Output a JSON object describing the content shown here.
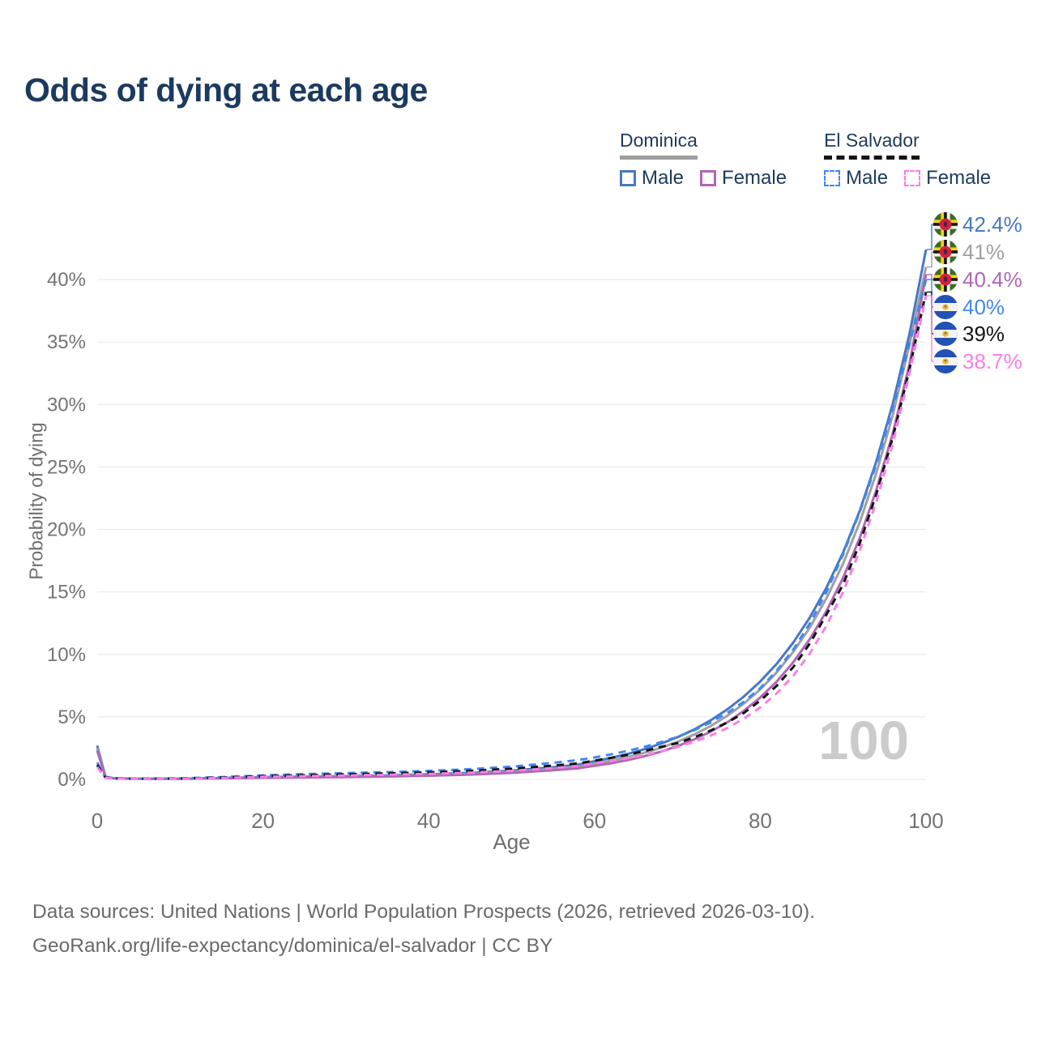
{
  "header": {
    "title": "Odds of dying at each age"
  },
  "legend": {
    "groups": [
      {
        "name": "Dominica",
        "line_style": "solid",
        "line_color": "#9e9e9e",
        "items": [
          {
            "label": "Male",
            "color": "#4577c4",
            "style": "solid"
          },
          {
            "label": "Female",
            "color": "#b066b6",
            "style": "solid"
          }
        ]
      },
      {
        "name": "El Salvador",
        "line_style": "dashed",
        "line_color": "#141414",
        "items": [
          {
            "label": "Male",
            "color": "#4287f0",
            "style": "dashed"
          },
          {
            "label": "Female",
            "color": "#f97ee7",
            "style": "dashed"
          }
        ]
      }
    ]
  },
  "chart_data": {
    "type": "line",
    "title": "Odds of dying at each age",
    "xlabel": "Age",
    "ylabel": "Probability of dying",
    "xlim": [
      0,
      100
    ],
    "ylim": [
      0,
      44
    ],
    "grid": "horizontal",
    "legend_position": "top-right",
    "watermark": "100",
    "xticks": [
      {
        "v": 0,
        "label": "0"
      },
      {
        "v": 20,
        "label": "20"
      },
      {
        "v": 40,
        "label": "40"
      },
      {
        "v": 60,
        "label": "60"
      },
      {
        "v": 80,
        "label": "80"
      },
      {
        "v": 100,
        "label": "100"
      }
    ],
    "yticks": [
      {
        "v": 0,
        "label": "0%"
      },
      {
        "v": 5,
        "label": "5%"
      },
      {
        "v": 10,
        "label": "10%"
      },
      {
        "v": 15,
        "label": "15%"
      },
      {
        "v": 20,
        "label": "20%"
      },
      {
        "v": 25,
        "label": "25%"
      },
      {
        "v": 30,
        "label": "30%"
      },
      {
        "v": 35,
        "label": "35%"
      },
      {
        "v": 40,
        "label": "40%"
      }
    ],
    "ages": [
      0,
      1,
      2,
      5,
      10,
      15,
      20,
      25,
      30,
      35,
      40,
      45,
      50,
      55,
      58,
      60,
      62,
      64,
      66,
      68,
      70,
      72,
      74,
      76,
      78,
      80,
      82,
      84,
      86,
      88,
      90,
      92,
      94,
      96,
      98,
      100
    ],
    "series": [
      {
        "name": "Dominica Male",
        "country": "Dominica",
        "sex": "Male",
        "color": "#4577c4",
        "dash": "solid",
        "flag": "dominica",
        "end_label": "42.4%",
        "end_value": 42.4,
        "values": [
          2.7,
          0.22,
          0.09,
          0.06,
          0.06,
          0.11,
          0.18,
          0.22,
          0.26,
          0.32,
          0.4,
          0.52,
          0.7,
          0.97,
          1.18,
          1.45,
          1.72,
          2.03,
          2.41,
          2.85,
          3.37,
          3.99,
          4.72,
          5.59,
          6.61,
          7.83,
          9.26,
          10.96,
          12.97,
          15.35,
          18.16,
          21.49,
          25.43,
          30.09,
          35.61,
          42.4
        ]
      },
      {
        "name": "Dominica",
        "country": "Dominica",
        "sex": "Both",
        "color": "#a0a0a0",
        "dash": "solid",
        "flag": "dominica",
        "end_label": "41%",
        "end_value": 41,
        "values": [
          2.5,
          0.2,
          0.08,
          0.05,
          0.05,
          0.09,
          0.15,
          0.19,
          0.22,
          0.27,
          0.34,
          0.44,
          0.6,
          0.84,
          1.02,
          1.25,
          1.49,
          1.78,
          2.12,
          2.52,
          3.0,
          3.58,
          4.26,
          5.08,
          6.05,
          7.2,
          8.58,
          10.22,
          12.17,
          14.5,
          17.27,
          20.57,
          24.5,
          29.18,
          34.76,
          41.0
        ]
      },
      {
        "name": "Dominica Female",
        "country": "Dominica",
        "sex": "Female",
        "color": "#b066b6",
        "dash": "solid",
        "flag": "dominica",
        "end_label": "40.4%",
        "end_value": 40.4,
        "values": [
          2.3,
          0.18,
          0.07,
          0.05,
          0.04,
          0.08,
          0.13,
          0.16,
          0.19,
          0.23,
          0.29,
          0.38,
          0.52,
          0.73,
          0.88,
          1.08,
          1.29,
          1.55,
          1.85,
          2.22,
          2.66,
          3.18,
          3.81,
          4.56,
          5.47,
          6.55,
          7.84,
          9.39,
          11.25,
          13.47,
          16.13,
          19.32,
          23.14,
          27.71,
          33.19,
          40.4
        ]
      },
      {
        "name": "El Salvador Male",
        "country": "El Salvador",
        "sex": "Male",
        "color": "#4287f0",
        "dash": "dashed",
        "flag": "el-salvador",
        "end_label": "40%",
        "end_value": 40,
        "values": [
          1.35,
          0.15,
          0.08,
          0.06,
          0.08,
          0.18,
          0.32,
          0.42,
          0.5,
          0.58,
          0.68,
          0.82,
          1.02,
          1.32,
          1.55,
          1.75,
          2.0,
          2.28,
          2.6,
          2.97,
          3.4,
          3.92,
          4.55,
          5.3,
          6.2,
          7.3,
          8.7,
          10.4,
          12.5,
          15.0,
          18.0,
          21.4,
          25.2,
          29.7,
          34.8,
          40.0
        ]
      },
      {
        "name": "El Salvador",
        "country": "El Salvador",
        "sex": "Both",
        "color": "#141414",
        "dash": "dashed",
        "flag": "el-salvador",
        "end_label": "39%",
        "end_value": 39,
        "values": [
          1.15,
          0.13,
          0.07,
          0.05,
          0.07,
          0.14,
          0.26,
          0.34,
          0.41,
          0.48,
          0.56,
          0.68,
          0.85,
          1.1,
          1.28,
          1.5,
          1.72,
          1.97,
          2.26,
          2.59,
          2.9,
          3.35,
          3.9,
          4.55,
          5.3,
          6.3,
          7.5,
          9.0,
          10.9,
          13.2,
          15.6,
          18.9,
          22.8,
          27.4,
          32.8,
          39.0
        ]
      },
      {
        "name": "El Salvador Female",
        "country": "El Salvador",
        "sex": "Female",
        "color": "#f97ee7",
        "dash": "dashed",
        "flag": "el-salvador",
        "end_label": "38.7%",
        "end_value": 38.7,
        "values": [
          1.0,
          0.11,
          0.06,
          0.04,
          0.05,
          0.11,
          0.2,
          0.26,
          0.31,
          0.37,
          0.44,
          0.54,
          0.68,
          0.9,
          1.06,
          1.28,
          1.47,
          1.69,
          1.94,
          2.24,
          2.58,
          3.0,
          3.5,
          4.1,
          4.85,
          5.75,
          6.9,
          8.3,
          10.1,
          12.3,
          15.0,
          18.3,
          22.2,
          26.9,
          32.4,
          38.7
        ]
      }
    ]
  },
  "footer": {
    "line1": "Data sources: United Nations | World Population Prospects (2026, retrieved 2026-03-10).",
    "line2": "GeoRank.org/life-expectancy/dominica/el-salvador | CC BY"
  }
}
